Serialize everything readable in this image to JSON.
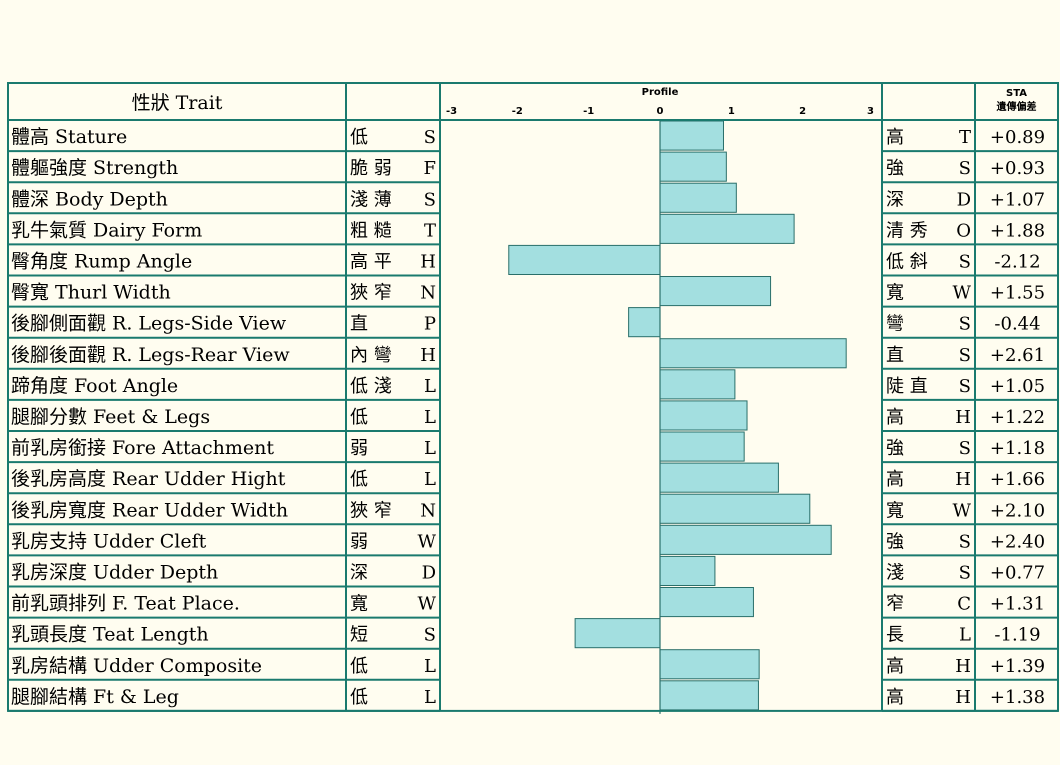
{
  "chart_data": {
    "type": "bar",
    "orientation": "horizontal",
    "header": {
      "trait": "性狀 Trait",
      "profile": "Profile",
      "sta_line1": "STA",
      "sta_line2": "遺傳偏差"
    },
    "xlim": [
      -3,
      3
    ],
    "ticks": [
      "-3",
      "-2",
      "-1",
      "0",
      "1",
      "2",
      "3"
    ],
    "bar_color": "#a3dfe0",
    "grid_color": "#1a7a6e",
    "rows": [
      {
        "trait": "體高 Stature",
        "low": "低",
        "low_code": "S",
        "high": "高",
        "high_code": "T",
        "value": 0.89,
        "label": "+0.89"
      },
      {
        "trait": "體軀強度 Strength",
        "low": "脆 弱",
        "low_code": "F",
        "high": "強",
        "high_code": "S",
        "value": 0.93,
        "label": "+0.93"
      },
      {
        "trait": "體深 Body Depth",
        "low": "淺 薄",
        "low_code": "S",
        "high": "深",
        "high_code": "D",
        "value": 1.07,
        "label": "+1.07"
      },
      {
        "trait": "乳牛氣質 Dairy Form",
        "low": "粗 糙",
        "low_code": "T",
        "high": "清 秀",
        "high_code": "O",
        "value": 1.88,
        "label": "+1.88"
      },
      {
        "trait": "臀角度 Rump Angle",
        "low": "高 平",
        "low_code": "H",
        "high": "低 斜",
        "high_code": "S",
        "value": -2.12,
        "label": "-2.12"
      },
      {
        "trait": "臀寬 Thurl Width",
        "low": "狹 窄",
        "low_code": "N",
        "high": "寬",
        "high_code": "W",
        "value": 1.55,
        "label": "+1.55"
      },
      {
        "trait": "後腳側面觀 R. Legs-Side View",
        "low": "直",
        "low_code": "P",
        "high": "彎",
        "high_code": "S",
        "value": -0.44,
        "label": "-0.44"
      },
      {
        "trait": "後腳後面觀 R. Legs-Rear View",
        "low": "內 彎",
        "low_code": "H",
        "high": "直",
        "high_code": "S",
        "value": 2.61,
        "label": "+2.61"
      },
      {
        "trait": "蹄角度 Foot Angle",
        "low": "低 淺",
        "low_code": "L",
        "high": "陡 直",
        "high_code": "S",
        "value": 1.05,
        "label": "+1.05"
      },
      {
        "trait": "腿腳分數 Feet & Legs",
        "low": "低",
        "low_code": "L",
        "high": "高",
        "high_code": "H",
        "value": 1.22,
        "label": "+1.22"
      },
      {
        "trait": "前乳房銜接 Fore Attachment",
        "low": "弱",
        "low_code": "L",
        "high": "強",
        "high_code": "S",
        "value": 1.18,
        "label": "+1.18"
      },
      {
        "trait": "後乳房高度 Rear Udder Hight",
        "low": "低",
        "low_code": "L",
        "high": "高",
        "high_code": "H",
        "value": 1.66,
        "label": "+1.66"
      },
      {
        "trait": "後乳房寬度 Rear Udder Width",
        "low": "狹 窄",
        "low_code": "N",
        "high": "寬",
        "high_code": "W",
        "value": 2.1,
        "label": "+2.10"
      },
      {
        "trait": "乳房支持 Udder Cleft",
        "low": "弱",
        "low_code": "W",
        "high": "強",
        "high_code": "S",
        "value": 2.4,
        "label": "+2.40"
      },
      {
        "trait": "乳房深度 Udder Depth",
        "low": "深",
        "low_code": "D",
        "high": "淺",
        "high_code": "S",
        "value": 0.77,
        "label": "+0.77"
      },
      {
        "trait": "前乳頭排列 F. Teat Place.",
        "low": "寬",
        "low_code": "W",
        "high": "窄",
        "high_code": "C",
        "value": 1.31,
        "label": "+1.31"
      },
      {
        "trait": "乳頭長度 Teat Length",
        "low": "短",
        "low_code": "S",
        "high": "長",
        "high_code": "L",
        "value": -1.19,
        "label": "-1.19"
      },
      {
        "trait": "乳房結構 Udder Composite",
        "low": "低",
        "low_code": "L",
        "high": "高",
        "high_code": "H",
        "value": 1.39,
        "label": "+1.39"
      },
      {
        "trait": "腿腳結構 Ft & Leg",
        "low": "低",
        "low_code": "L",
        "high": "高",
        "high_code": "H",
        "value": 1.38,
        "label": "+1.38"
      }
    ]
  }
}
